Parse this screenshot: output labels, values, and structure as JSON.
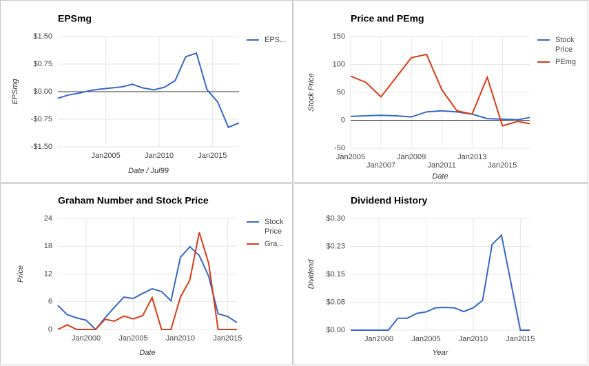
{
  "chart_data": [
    {
      "type": "line",
      "title": "EPSmg",
      "y_title": "EPSmg",
      "x_title": "Date / Jul99",
      "x": [
        2000.5,
        2001.5,
        2002.5,
        2003.5,
        2004.5,
        2005.5,
        2006.5,
        2007.5,
        2008.5,
        2009.5,
        2010.5,
        2011.5,
        2012.5,
        2013.5,
        2014.5,
        2015.5,
        2016.5,
        2017.5
      ],
      "series": [
        {
          "name": "EPS...",
          "color": "#3366cc",
          "values": [
            -0.18,
            -0.09,
            -0.04,
            0.03,
            0.07,
            0.1,
            0.13,
            0.2,
            0.1,
            0.05,
            0.12,
            0.3,
            0.95,
            1.05,
            0.05,
            -0.28,
            -0.97,
            -0.85
          ]
        }
      ],
      "xlim": [
        2000.5,
        2017.5
      ],
      "xticks": [
        {
          "value": 2005,
          "label": "Jan2005"
        },
        {
          "value": 2010,
          "label": "Jan2010"
        },
        {
          "value": 2015,
          "label": "Jan2015"
        }
      ],
      "ylim": [
        -1.5,
        1.5
      ],
      "yticks": [
        {
          "value": -1.5,
          "label": "-$1.50"
        },
        {
          "value": -0.75,
          "label": "-$0.75"
        },
        {
          "value": 0,
          "label": "$0.00"
        },
        {
          "value": 0.75,
          "label": "$0.75"
        },
        {
          "value": 1.5,
          "label": "$1.50"
        }
      ],
      "grid": true,
      "legend": "right"
    },
    {
      "type": "line",
      "title": "Price and PEmg",
      "y_title": "Stock Price",
      "x_title": "Date",
      "x": [
        2005,
        2006,
        2007,
        2008,
        2009,
        2010,
        2011,
        2012,
        2013,
        2014,
        2015,
        2016,
        2016.8
      ],
      "series": [
        {
          "name": "Stock Price",
          "color": "#3366cc",
          "values": [
            7,
            8,
            9,
            8,
            6,
            15,
            17,
            15,
            11,
            3,
            2,
            1,
            5
          ]
        },
        {
          "name": "PEmg",
          "color": "#dc3912",
          "values": [
            79,
            68,
            42,
            77,
            112,
            118,
            55,
            17,
            11,
            77,
            -10,
            -2,
            -6
          ]
        }
      ],
      "xlim": [
        2005,
        2016.8
      ],
      "xticks": [
        {
          "value": 2005,
          "label": "Jan2005"
        },
        {
          "value": 2007,
          "label": "Jan2007"
        },
        {
          "value": 2009,
          "label": "Jan2009"
        },
        {
          "value": 2011,
          "label": "Jan2011"
        },
        {
          "value": 2013,
          "label": "Jan2013"
        },
        {
          "value": 2015,
          "label": "Jan2015"
        }
      ],
      "stagger_xticks": true,
      "ylim": [
        -50,
        150
      ],
      "yticks": [
        -50,
        0,
        50,
        100,
        150
      ],
      "grid": true,
      "legend": "right"
    },
    {
      "type": "line",
      "title": "Graham Number and Stock Price",
      "y_title": "Price",
      "x_title": "Date",
      "x": [
        1997,
        1998,
        1999,
        2000,
        2001,
        2002,
        2003,
        2004,
        2005,
        2006,
        2007,
        2008,
        2009,
        2010,
        2011,
        2012,
        2013,
        2014,
        2015,
        2016
      ],
      "series": [
        {
          "name": "Stock Price",
          "color": "#3366cc",
          "values": [
            5.2,
            3.2,
            2.5,
            2.0,
            0,
            2.5,
            4.8,
            7,
            6.7,
            7.8,
            8.8,
            8.2,
            6.2,
            15.6,
            17.9,
            16,
            11.5,
            3.4,
            2.8,
            1.5
          ]
        },
        {
          "name": "Gra...",
          "color": "#dc3912",
          "values": [
            0,
            1,
            0,
            0,
            0,
            2.2,
            1.8,
            2.9,
            2.3,
            3,
            6.9,
            0,
            0,
            7,
            10.7,
            21,
            14.3,
            0,
            0,
            0
          ]
        }
      ],
      "xlim": [
        1997,
        2016
      ],
      "xticks": [
        {
          "value": 2000,
          "label": "Jan2000"
        },
        {
          "value": 2005,
          "label": "Jan2005"
        },
        {
          "value": 2010,
          "label": "Jan2010"
        },
        {
          "value": 2015,
          "label": "Jan2015"
        }
      ],
      "ylim": [
        0,
        24
      ],
      "yticks": [
        0,
        6,
        12,
        18,
        24
      ],
      "grid": true,
      "legend": "right"
    },
    {
      "type": "line",
      "title": "Dividend History",
      "y_title": "Dividend",
      "x_title": "Year",
      "x": [
        1997,
        1998,
        1999,
        2000,
        2001,
        2002,
        2003,
        2004,
        2005,
        2006,
        2007,
        2008,
        2009,
        2010,
        2011,
        2012,
        2013,
        2014,
        2015,
        2016
      ],
      "values": [
        0,
        0,
        0,
        0,
        0,
        0.032,
        0.032,
        0.045,
        0.049,
        0.06,
        0.061,
        0.06,
        0.05,
        0.06,
        0.08,
        0.23,
        0.255,
        0.128,
        0,
        0
      ],
      "color": "#3366cc",
      "xlim": [
        1997,
        2016
      ],
      "xticks": [
        {
          "value": 2000,
          "label": "Jan2000"
        },
        {
          "value": 2005,
          "label": "Jan2005"
        },
        {
          "value": 2010,
          "label": "Jan2010"
        },
        {
          "value": 2015,
          "label": "Jan2015"
        }
      ],
      "ylim": [
        0,
        0.3
      ],
      "yticks": [
        {
          "value": 0,
          "label": "$0.00"
        },
        {
          "value": 0.075,
          "label": "$0.08"
        },
        {
          "value": 0.15,
          "label": "$0.15"
        },
        {
          "value": 0.225,
          "label": "$0.23"
        },
        {
          "value": 0.3,
          "label": "$0.30"
        }
      ],
      "grid": true
    }
  ]
}
